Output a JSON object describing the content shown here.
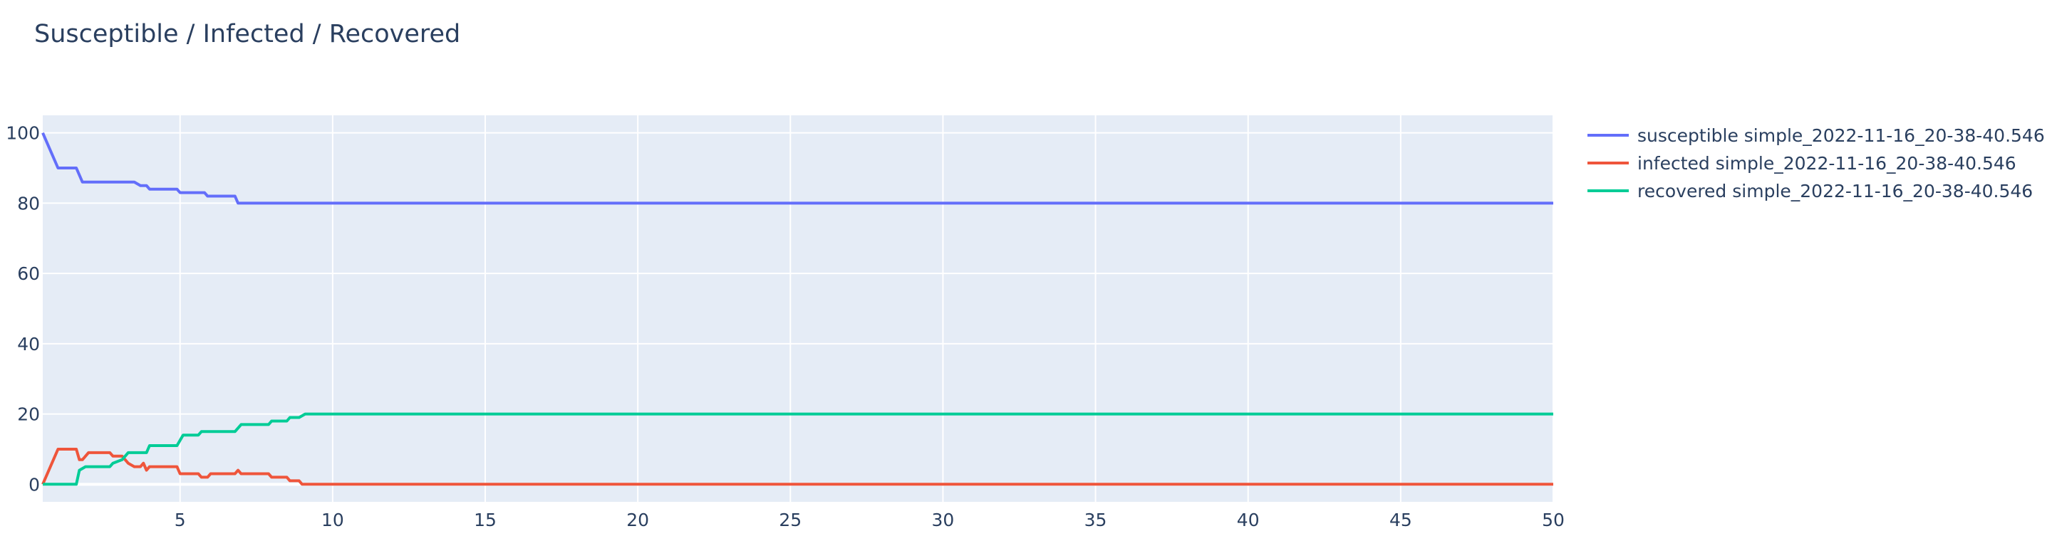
{
  "chart_data": {
    "type": "line",
    "title": "Susceptible / Infected / Recovered",
    "xlabel": "",
    "ylabel": "",
    "xlim": [
      0.5,
      50
    ],
    "ylim": [
      -5,
      105
    ],
    "x_ticks": [
      5,
      10,
      15,
      20,
      25,
      30,
      35,
      40,
      45,
      50
    ],
    "y_ticks": [
      0,
      20,
      40,
      60,
      80,
      100
    ],
    "grid": true,
    "legend_position": "right",
    "background_color": "#e5ecf6",
    "series": [
      {
        "name": "susceptible simple_2022-11-16_20-38-40.546",
        "color": "#636efa",
        "points": [
          [
            0.5,
            100
          ],
          [
            1,
            90
          ],
          [
            1.6,
            90
          ],
          [
            1.8,
            86
          ],
          [
            3.1,
            86
          ],
          [
            3.5,
            86
          ],
          [
            3.7,
            85
          ],
          [
            3.9,
            85
          ],
          [
            4,
            84
          ],
          [
            4.9,
            84
          ],
          [
            5,
            83
          ],
          [
            5.8,
            83
          ],
          [
            5.9,
            82
          ],
          [
            6.8,
            82
          ],
          [
            6.9,
            80
          ],
          [
            50,
            80
          ]
        ]
      },
      {
        "name": "infected simple_2022-11-16_20-38-40.546",
        "color": "#ef553b",
        "points": [
          [
            0.5,
            0
          ],
          [
            1,
            10
          ],
          [
            1.6,
            10
          ],
          [
            1.7,
            7
          ],
          [
            1.8,
            7
          ],
          [
            2,
            9
          ],
          [
            2.7,
            9
          ],
          [
            2.8,
            8
          ],
          [
            3.1,
            8
          ],
          [
            3.3,
            6
          ],
          [
            3.5,
            5
          ],
          [
            3.7,
            5
          ],
          [
            3.8,
            6
          ],
          [
            3.9,
            4
          ],
          [
            4,
            5
          ],
          [
            4.9,
            5
          ],
          [
            5,
            3
          ],
          [
            5.6,
            3
          ],
          [
            5.7,
            2
          ],
          [
            5.9,
            2
          ],
          [
            6,
            3
          ],
          [
            6.8,
            3
          ],
          [
            6.9,
            4
          ],
          [
            7,
            3
          ],
          [
            7.9,
            3
          ],
          [
            8,
            2
          ],
          [
            8.5,
            2
          ],
          [
            8.6,
            1
          ],
          [
            8.9,
            1
          ],
          [
            9,
            0
          ],
          [
            50,
            0
          ]
        ]
      },
      {
        "name": "recovered simple_2022-11-16_20-38-40.546",
        "color": "#00cc96",
        "points": [
          [
            0.5,
            0
          ],
          [
            1.6,
            0
          ],
          [
            1.7,
            4
          ],
          [
            1.9,
            5
          ],
          [
            2.7,
            5
          ],
          [
            2.8,
            6
          ],
          [
            3.1,
            7
          ],
          [
            3.3,
            9
          ],
          [
            3.9,
            9
          ],
          [
            4,
            11
          ],
          [
            4.9,
            11
          ],
          [
            5.1,
            14
          ],
          [
            5.6,
            14
          ],
          [
            5.7,
            15
          ],
          [
            6.8,
            15
          ],
          [
            7,
            17
          ],
          [
            7.9,
            17
          ],
          [
            8,
            18
          ],
          [
            8.5,
            18
          ],
          [
            8.6,
            19
          ],
          [
            8.9,
            19
          ],
          [
            9.1,
            20
          ],
          [
            50,
            20
          ]
        ]
      }
    ]
  }
}
